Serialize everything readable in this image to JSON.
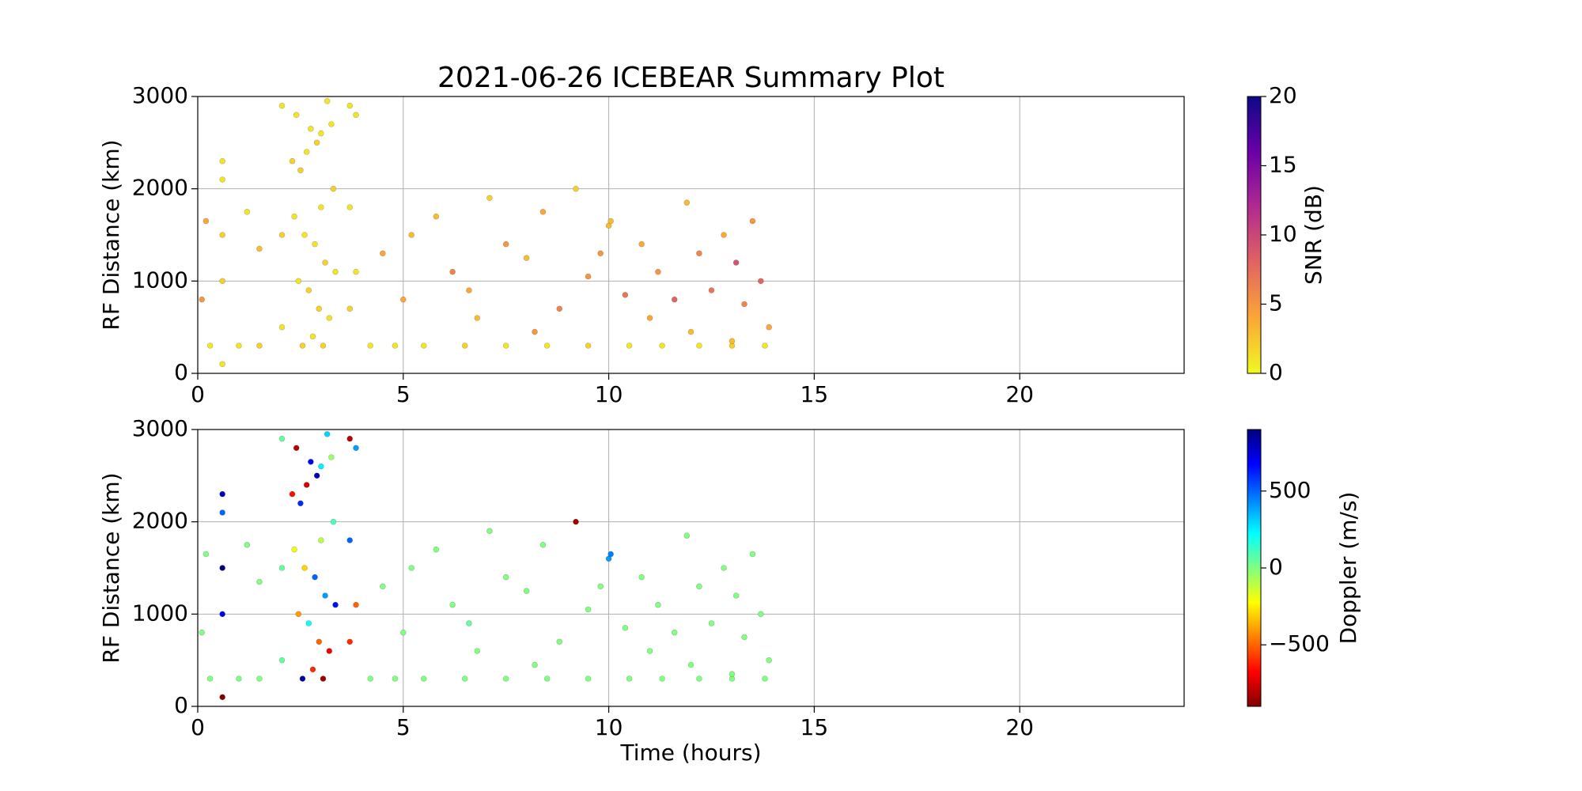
{
  "chart_data": [
    {
      "type": "scatter",
      "title": "2021-06-26 ICEBEAR Summary Plot",
      "ylabel": "RF Distance (km)",
      "xlim": [
        0,
        24
      ],
      "xticks": [
        0,
        5,
        10,
        15,
        20
      ],
      "ylim": [
        0,
        3000
      ],
      "yticks": [
        0,
        1000,
        2000,
        3000
      ],
      "grid": true,
      "colorbar_label": "SNR (dB)",
      "clim": [
        0,
        20
      ],
      "cticks": [
        0,
        5,
        10,
        15,
        20
      ],
      "colormap": [
        "#f0f921",
        "#fca636",
        "#e16462",
        "#b12a90",
        "#6a00a8",
        "#0d0887"
      ],
      "x": [
        0.3,
        1,
        1.5,
        4.2,
        4.8,
        5.5,
        6.5,
        7.5,
        8.5,
        9.5,
        10.5,
        11.3,
        12.2,
        13,
        13.8,
        0.1,
        0.2,
        0.6,
        0.6,
        0.6,
        0.6,
        0.6,
        1.2,
        1.5,
        2.05,
        2.05,
        2.05,
        2.4,
        2.5,
        2.6,
        2.7,
        2.8,
        2.9,
        3.0,
        3.1,
        3.2,
        3.3,
        2.45,
        2.75,
        3.05,
        3.15,
        2.35,
        2.55,
        2.65,
        2.85,
        2.95,
        3.25,
        3.35,
        2.3,
        3.0,
        3.7,
        3.7,
        3.7,
        3.85,
        3.85,
        4.5,
        5.2,
        5.8,
        6.2,
        6.6,
        7.1,
        7.5,
        8.0,
        8.4,
        8.8,
        9.2,
        9.5,
        10.0,
        10.05,
        10.4,
        10.8,
        11.2,
        11.6,
        11.9,
        12.2,
        12.5,
        12.8,
        13.1,
        13.3,
        13.5,
        13.7,
        13.9,
        12.0,
        8.2,
        5.0,
        6.8,
        9.8,
        11.0,
        13.0
      ],
      "values": [
        300,
        300,
        300,
        300,
        300,
        300,
        300,
        300,
        300,
        300,
        300,
        300,
        300,
        300,
        300,
        800,
        1650,
        2300,
        2100,
        1500,
        1000,
        100,
        1750,
        1350,
        2900,
        1500,
        500,
        2800,
        2200,
        1500,
        900,
        400,
        2500,
        1800,
        1200,
        600,
        2000,
        1000,
        2650,
        300,
        2950,
        1700,
        300,
        2400,
        1400,
        700,
        2700,
        1100,
        2300,
        2600,
        2900,
        1800,
        700,
        2800,
        1100,
        1300,
        1500,
        1700,
        1100,
        900,
        1900,
        1400,
        1250,
        1750,
        700,
        2000,
        1050,
        1600,
        1650,
        850,
        1400,
        1100,
        800,
        1850,
        1300,
        900,
        1500,
        1200,
        750,
        1650,
        1000,
        500,
        450,
        450,
        800,
        600,
        1300,
        600,
        350
      ],
      "color_values": [
        1,
        1,
        2,
        1,
        1,
        1,
        2,
        1,
        1,
        2,
        1,
        1,
        1,
        2,
        1,
        5,
        4,
        1,
        1,
        2,
        2,
        1,
        1,
        3,
        1,
        2,
        1,
        1,
        2,
        1,
        2,
        1,
        2,
        1,
        2,
        1,
        2,
        1,
        1,
        2,
        1,
        1,
        2,
        1,
        1,
        2,
        1,
        1,
        2,
        1,
        1,
        1,
        2,
        1,
        1,
        4,
        3,
        3,
        6,
        4,
        2,
        5,
        3,
        4,
        6,
        2,
        5,
        3,
        3,
        7,
        4,
        5,
        8,
        3,
        6,
        7,
        4,
        9,
        6,
        5,
        8,
        4,
        3,
        5,
        4,
        3,
        5,
        4,
        3
      ]
    },
    {
      "type": "scatter",
      "ylabel": "RF Distance (km)",
      "xlabel": "Time (hours)",
      "xlim": [
        0,
        24
      ],
      "xticks": [
        0,
        5,
        10,
        15,
        20
      ],
      "ylim": [
        0,
        3000
      ],
      "yticks": [
        0,
        1000,
        2000,
        3000
      ],
      "grid": true,
      "colorbar_label": "Doppler (m/s)",
      "clim": [
        -900,
        900
      ],
      "cticks": [
        {
          "value": -500,
          "label": "−500"
        },
        0,
        500
      ],
      "colormap": [
        "#800000",
        "#ff0000",
        "#ff8000",
        "#ffff00",
        "#80ff80",
        "#00ffff",
        "#0080ff",
        "#0000ff",
        "#000080"
      ],
      "x": [
        0.3,
        1,
        1.5,
        4.2,
        4.8,
        5.5,
        6.5,
        7.5,
        8.5,
        9.5,
        10.5,
        11.3,
        12.2,
        13,
        13.8,
        0.1,
        0.2,
        0.6,
        0.6,
        0.6,
        0.6,
        0.6,
        1.2,
        1.5,
        2.05,
        2.05,
        2.05,
        2.4,
        2.5,
        2.6,
        2.7,
        2.8,
        2.9,
        3.0,
        3.1,
        3.2,
        3.3,
        2.45,
        2.75,
        3.05,
        3.15,
        2.35,
        2.55,
        2.65,
        2.85,
        2.95,
        3.25,
        3.35,
        2.3,
        3.0,
        3.7,
        3.7,
        3.7,
        3.85,
        3.85,
        4.5,
        5.2,
        5.8,
        6.2,
        6.6,
        7.1,
        7.5,
        8.0,
        8.4,
        8.8,
        9.2,
        9.5,
        10.0,
        10.05,
        10.4,
        10.8,
        11.2,
        11.6,
        11.9,
        12.2,
        12.5,
        12.8,
        13.1,
        13.3,
        13.5,
        13.7,
        13.9,
        12.0,
        8.2,
        5.0,
        6.8,
        9.8,
        11.0,
        13.0
      ],
      "values": [
        300,
        300,
        300,
        300,
        300,
        300,
        300,
        300,
        300,
        300,
        300,
        300,
        300,
        300,
        300,
        800,
        1650,
        2300,
        2100,
        1500,
        1000,
        100,
        1750,
        1350,
        2900,
        1500,
        500,
        2800,
        2200,
        1500,
        900,
        400,
        2500,
        1800,
        1200,
        600,
        2000,
        1000,
        2650,
        300,
        2950,
        1700,
        300,
        2400,
        1400,
        700,
        2700,
        1100,
        2300,
        2600,
        2900,
        1800,
        700,
        2800,
        1100,
        1300,
        1500,
        1700,
        1100,
        900,
        1900,
        1400,
        1250,
        1750,
        700,
        2000,
        1050,
        1600,
        1650,
        850,
        1400,
        1100,
        800,
        1850,
        1300,
        900,
        1500,
        1200,
        750,
        1650,
        1000,
        500,
        450,
        450,
        800,
        600,
        1300,
        600,
        350
      ],
      "color_values": [
        0,
        10,
        0,
        0,
        0,
        0,
        0,
        0,
        0,
        0,
        0,
        0,
        0,
        0,
        0,
        0,
        0,
        800,
        500,
        900,
        700,
        -900,
        0,
        0,
        50,
        50,
        50,
        -800,
        600,
        -300,
        200,
        -600,
        800,
        -100,
        400,
        -700,
        100,
        -400,
        700,
        -850,
        300,
        -200,
        850,
        -750,
        500,
        -500,
        -50,
        650,
        -650,
        250,
        -800,
        500,
        -600,
        400,
        -500,
        0,
        0,
        0,
        0,
        50,
        0,
        0,
        0,
        0,
        0,
        -850,
        0,
        400,
        450,
        0,
        0,
        0,
        0,
        0,
        0,
        0,
        0,
        0,
        0,
        0,
        0,
        0,
        0,
        0,
        0,
        0,
        0,
        0,
        0
      ]
    }
  ]
}
